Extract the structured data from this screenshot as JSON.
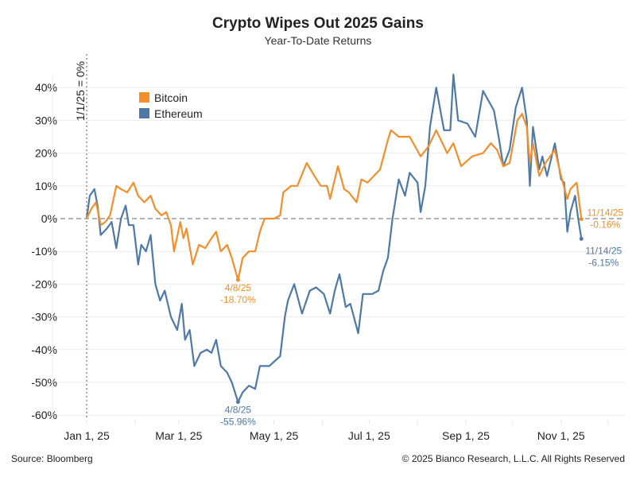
{
  "title": "Crypto Wipes Out 2025 Gains",
  "subtitle": "Year-To-Date Returns",
  "footer": {
    "source": "Source: Bloomberg",
    "copyright": "© 2025 Bianco Research, L.L.C. All Rights Reserved"
  },
  "chart_data": {
    "type": "line",
    "title": "Crypto Wipes Out 2025 Gains",
    "subtitle": "Year-To-Date Returns",
    "xlabel": "",
    "ylabel": "",
    "ylim": [
      -62,
      45
    ],
    "xlim": [
      "2024-12-20",
      "2025-12-31"
    ],
    "grid": "horizontal",
    "legend_placement": "top-left",
    "y_ticks": [
      {
        "v": 40,
        "label": "40%"
      },
      {
        "v": 30,
        "label": "30%"
      },
      {
        "v": 20,
        "label": "20%"
      },
      {
        "v": 10,
        "label": "10%"
      },
      {
        "v": 0,
        "label": "0%"
      },
      {
        "v": -10,
        "label": "-10%"
      },
      {
        "v": -20,
        "label": "-20%"
      },
      {
        "v": -30,
        "label": "-30%"
      },
      {
        "v": -40,
        "label": "-40%"
      },
      {
        "v": -50,
        "label": "-50%"
      },
      {
        "v": -60,
        "label": "-60%"
      }
    ],
    "x_ticks": [
      {
        "d": "2025-01-01",
        "label": "Jan 1, 25"
      },
      {
        "d": "2025-03-01",
        "label": "Mar 1, 25"
      },
      {
        "d": "2025-05-01",
        "label": "May 1, 25"
      },
      {
        "d": "2025-07-01",
        "label": "Jul 1, 25"
      },
      {
        "d": "2025-09-01",
        "label": "Sep 1, 25"
      },
      {
        "d": "2025-11-01",
        "label": "Nov 1, 25"
      }
    ],
    "reference_line": {
      "label": "1/1/25 = 0%",
      "date": "2025-01-01"
    },
    "series": [
      {
        "name": "Bitcoin",
        "color": "#F28E2B",
        "points": [
          [
            "2025-01-01",
            0
          ],
          [
            "2025-01-04",
            3
          ],
          [
            "2025-01-07",
            5
          ],
          [
            "2025-01-10",
            -2
          ],
          [
            "2025-01-13",
            -1
          ],
          [
            "2025-01-16",
            1
          ],
          [
            "2025-01-20",
            10
          ],
          [
            "2025-01-23",
            9
          ],
          [
            "2025-01-27",
            8
          ],
          [
            "2025-01-31",
            11
          ],
          [
            "2025-02-03",
            7
          ],
          [
            "2025-02-07",
            5
          ],
          [
            "2025-02-11",
            7
          ],
          [
            "2025-02-14",
            3
          ],
          [
            "2025-02-18",
            1
          ],
          [
            "2025-02-21",
            2
          ],
          [
            "2025-02-24",
            -2
          ],
          [
            "2025-02-26",
            -10
          ],
          [
            "2025-03-02",
            -1
          ],
          [
            "2025-03-04",
            -6
          ],
          [
            "2025-03-06",
            -3
          ],
          [
            "2025-03-10",
            -14
          ],
          [
            "2025-03-14",
            -8
          ],
          [
            "2025-03-18",
            -9
          ],
          [
            "2025-03-22",
            -6
          ],
          [
            "2025-03-25",
            -4
          ],
          [
            "2025-03-28",
            -10
          ],
          [
            "2025-04-01",
            -8
          ],
          [
            "2025-04-04",
            -12
          ],
          [
            "2025-04-08",
            -18.7
          ],
          [
            "2025-04-11",
            -12
          ],
          [
            "2025-04-15",
            -10
          ],
          [
            "2025-04-19",
            -10
          ],
          [
            "2025-04-22",
            -4
          ],
          [
            "2025-04-25",
            0
          ],
          [
            "2025-05-01",
            0
          ],
          [
            "2025-05-05",
            1
          ],
          [
            "2025-05-07",
            8
          ],
          [
            "2025-05-12",
            10
          ],
          [
            "2025-05-16",
            10
          ],
          [
            "2025-05-22",
            17
          ],
          [
            "2025-05-27",
            13
          ],
          [
            "2025-05-31",
            10
          ],
          [
            "2025-06-04",
            10
          ],
          [
            "2025-06-06",
            6
          ],
          [
            "2025-06-11",
            16
          ],
          [
            "2025-06-15",
            9
          ],
          [
            "2025-06-18",
            8
          ],
          [
            "2025-06-23",
            5
          ],
          [
            "2025-06-26",
            12
          ],
          [
            "2025-06-30",
            11
          ],
          [
            "2025-07-04",
            13
          ],
          [
            "2025-07-08",
            15
          ],
          [
            "2025-07-13",
            24
          ],
          [
            "2025-07-15",
            27
          ],
          [
            "2025-07-20",
            25
          ],
          [
            "2025-07-27",
            25
          ],
          [
            "2025-08-03",
            19
          ],
          [
            "2025-08-08",
            22
          ],
          [
            "2025-08-13",
            27
          ],
          [
            "2025-08-20",
            20
          ],
          [
            "2025-08-24",
            23
          ],
          [
            "2025-08-29",
            16
          ],
          [
            "2025-09-05",
            19
          ],
          [
            "2025-09-12",
            20
          ],
          [
            "2025-09-17",
            23
          ],
          [
            "2025-09-21",
            21
          ],
          [
            "2025-09-25",
            16
          ],
          [
            "2025-09-29",
            17
          ],
          [
            "2025-10-04",
            30
          ],
          [
            "2025-10-07",
            32
          ],
          [
            "2025-10-10",
            28
          ],
          [
            "2025-10-12",
            17
          ],
          [
            "2025-10-14",
            23
          ],
          [
            "2025-10-18",
            13
          ],
          [
            "2025-10-22",
            17
          ],
          [
            "2025-10-28",
            21
          ],
          [
            "2025-11-01",
            13
          ],
          [
            "2025-11-05",
            6
          ],
          [
            "2025-11-07",
            9
          ],
          [
            "2025-11-11",
            11
          ],
          [
            "2025-11-14",
            -0.16
          ]
        ]
      },
      {
        "name": "Ethereum",
        "color": "#4E79A7",
        "points": [
          [
            "2025-01-01",
            0
          ],
          [
            "2025-01-03",
            7
          ],
          [
            "2025-01-06",
            9
          ],
          [
            "2025-01-08",
            4
          ],
          [
            "2025-01-10",
            -5
          ],
          [
            "2025-01-14",
            -3
          ],
          [
            "2025-01-17",
            -1
          ],
          [
            "2025-01-20",
            -9
          ],
          [
            "2025-01-23",
            0
          ],
          [
            "2025-01-26",
            4
          ],
          [
            "2025-01-28",
            -2
          ],
          [
            "2025-01-31",
            -2
          ],
          [
            "2025-02-03",
            -14
          ],
          [
            "2025-02-05",
            -8
          ],
          [
            "2025-02-08",
            -10
          ],
          [
            "2025-02-11",
            -5
          ],
          [
            "2025-02-14",
            -20
          ],
          [
            "2025-02-17",
            -25
          ],
          [
            "2025-02-20",
            -22
          ],
          [
            "2025-02-24",
            -30
          ],
          [
            "2025-02-28",
            -34
          ],
          [
            "2025-03-03",
            -26
          ],
          [
            "2025-03-05",
            -37
          ],
          [
            "2025-03-08",
            -34
          ],
          [
            "2025-03-11",
            -45
          ],
          [
            "2025-03-15",
            -41
          ],
          [
            "2025-03-19",
            -40
          ],
          [
            "2025-03-22",
            -41
          ],
          [
            "2025-03-25",
            -37
          ],
          [
            "2025-03-28",
            -45
          ],
          [
            "2025-04-01",
            -47
          ],
          [
            "2025-04-04",
            -50
          ],
          [
            "2025-04-08",
            -55.96
          ],
          [
            "2025-04-11",
            -53
          ],
          [
            "2025-04-15",
            -51
          ],
          [
            "2025-04-19",
            -52
          ],
          [
            "2025-04-22",
            -45
          ],
          [
            "2025-04-28",
            -45
          ],
          [
            "2025-05-05",
            -42
          ],
          [
            "2025-05-08",
            -30
          ],
          [
            "2025-05-10",
            -25
          ],
          [
            "2025-05-14",
            -20
          ],
          [
            "2025-05-19",
            -29
          ],
          [
            "2025-05-24",
            -22
          ],
          [
            "2025-05-28",
            -21
          ],
          [
            "2025-06-02",
            -23
          ],
          [
            "2025-06-06",
            -29
          ],
          [
            "2025-06-09",
            -22
          ],
          [
            "2025-06-12",
            -17
          ],
          [
            "2025-06-16",
            -27
          ],
          [
            "2025-06-19",
            -26
          ],
          [
            "2025-06-24",
            -35
          ],
          [
            "2025-06-27",
            -23
          ],
          [
            "2025-07-03",
            -23
          ],
          [
            "2025-07-07",
            -22
          ],
          [
            "2025-07-10",
            -16
          ],
          [
            "2025-07-13",
            -12
          ],
          [
            "2025-07-16",
            0
          ],
          [
            "2025-07-20",
            12
          ],
          [
            "2025-07-24",
            7
          ],
          [
            "2025-07-27",
            14
          ],
          [
            "2025-08-01",
            11
          ],
          [
            "2025-08-03",
            2
          ],
          [
            "2025-08-06",
            10
          ],
          [
            "2025-08-09",
            28
          ],
          [
            "2025-08-13",
            40
          ],
          [
            "2025-08-18",
            27
          ],
          [
            "2025-08-22",
            27
          ],
          [
            "2025-08-24",
            44
          ],
          [
            "2025-08-27",
            30
          ],
          [
            "2025-09-02",
            29
          ],
          [
            "2025-09-07",
            25
          ],
          [
            "2025-09-12",
            39
          ],
          [
            "2025-09-19",
            33
          ],
          [
            "2025-09-22",
            25
          ],
          [
            "2025-09-25",
            16
          ],
          [
            "2025-09-29",
            21
          ],
          [
            "2025-10-03",
            34
          ],
          [
            "2025-10-07",
            40
          ],
          [
            "2025-10-10",
            30
          ],
          [
            "2025-10-12",
            10
          ],
          [
            "2025-10-14",
            28
          ],
          [
            "2025-10-18",
            15
          ],
          [
            "2025-10-20",
            19
          ],
          [
            "2025-10-23",
            13
          ],
          [
            "2025-10-28",
            23
          ],
          [
            "2025-11-01",
            12
          ],
          [
            "2025-11-03",
            11
          ],
          [
            "2025-11-05",
            -4
          ],
          [
            "2025-11-07",
            2
          ],
          [
            "2025-11-10",
            7
          ],
          [
            "2025-11-12",
            0
          ],
          [
            "2025-11-14",
            -6.15
          ]
        ]
      }
    ],
    "annotations": [
      {
        "series": "Bitcoin",
        "date": "2025-04-08",
        "value": -18.7,
        "label_date": "4/8/25",
        "label_value": "-18.70%"
      },
      {
        "series": "Ethereum",
        "date": "2025-04-08",
        "value": -55.96,
        "label_date": "4/8/25",
        "label_value": "-55.96%"
      },
      {
        "series": "Bitcoin",
        "date": "2025-11-14",
        "value": -0.16,
        "label_date": "11/14/25",
        "label_value": "-0.16%"
      },
      {
        "series": "Ethereum",
        "date": "2025-11-14",
        "value": -6.15,
        "label_date": "11/14/25",
        "label_value": "-6.15%"
      }
    ]
  }
}
